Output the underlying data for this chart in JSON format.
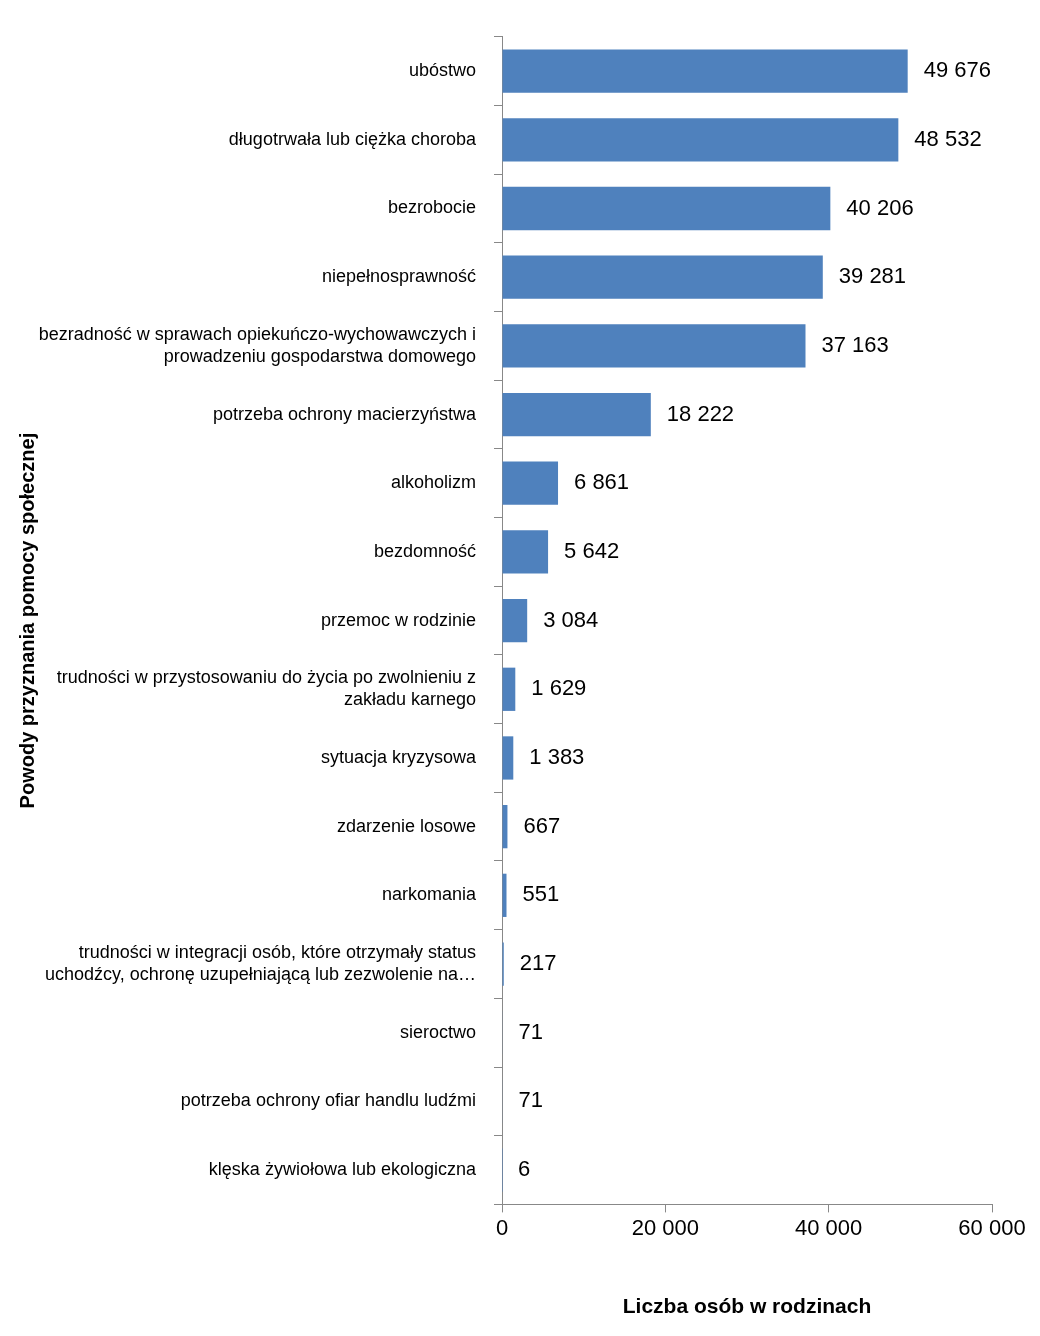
{
  "chart_data": {
    "type": "bar",
    "orientation": "horizontal",
    "xlabel": "Liczba osób w rodzinach",
    "ylabel": "Powody przyznania pomocy społecznej",
    "categories": [
      "ubóstwo",
      "długotrwała lub ciężka choroba",
      "bezrobocie",
      "niepełnosprawność",
      "bezradność w sprawach opiekuńczo-wychowawczych i prowadzeniu gospodarstwa domowego",
      "potrzeba ochrony macierzyństwa",
      "alkoholizm",
      "bezdomność",
      "przemoc w rodzinie",
      "trudności w przystosowaniu do życia po zwolnieniu z zakładu karnego",
      "sytuacja kryzysowa",
      "zdarzenie losowe",
      "narkomania",
      "trudności w integracji osób, które otrzymały status uchodźcy, ochronę uzupełniającą lub zezwolenie na…",
      "sieroctwo",
      "potrzeba ochrony ofiar handlu ludźmi",
      "klęska żywiołowa lub ekologiczna"
    ],
    "values": [
      49676,
      48532,
      40206,
      39281,
      37163,
      18222,
      6861,
      5642,
      3084,
      1629,
      1383,
      667,
      551,
      217,
      71,
      71,
      6
    ],
    "value_labels": [
      "49 676",
      "48 532",
      "40 206",
      "39 281",
      "37 163",
      "18 222",
      "6 861",
      "5 642",
      "3 084",
      "1 629",
      "1 383",
      "667",
      "551",
      "217",
      "71",
      "71",
      "6"
    ],
    "color": "#4f81bd",
    "xlim": [
      0,
      60000
    ],
    "xticks": [
      {
        "value": 0,
        "label": "0"
      },
      {
        "value": 20000,
        "label": "20 000"
      },
      {
        "value": 40000,
        "label": "40 000"
      },
      {
        "value": 60000,
        "label": "60 000"
      }
    ],
    "grid": false,
    "legend": false
  }
}
